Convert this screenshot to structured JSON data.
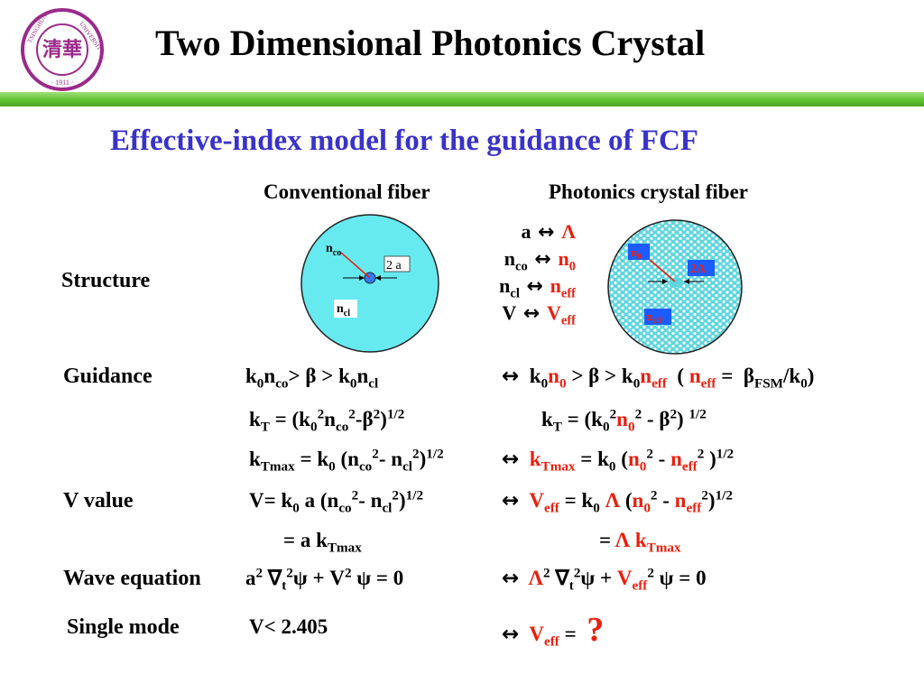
{
  "header": {
    "title": "Two Dimensional Photonics Crystal",
    "logo_text": [
      "TSINGHUA",
      "UNIVERSITY",
      "1911"
    ]
  },
  "subtitle": "Effective-index model for the guidance of FCF",
  "columns": {
    "conventional": "Conventional fiber",
    "photonic": "Photonics crystal  fiber"
  },
  "rows": {
    "structure": "Structure",
    "guidance": "Guidance",
    "v_value": "V value",
    "wave_equation": "Wave equation",
    "single_mode": "Single mode"
  },
  "diagram": {
    "conv_core_label": "co",
    "conv_clad_label": "cl",
    "conv_size": "2 a",
    "pcf_core_label": "0",
    "pcf_clad_label": "eff",
    "pcf_size": "2Λ"
  },
  "mapping": {
    "a": "a",
    "lambda": "Λ",
    "n": "n",
    "co": "co",
    "zero": "0",
    "cl": "cl",
    "eff": "eff",
    "V": "V"
  },
  "single_mode": {
    "conventional": "V< 2.405",
    "photonic_answer": "?"
  },
  "colors": {
    "title_blue": "#3a32c8",
    "accent_red": "#e8200f",
    "bar_green": "#62c232",
    "fiber_cyan": "#66eaf0"
  }
}
